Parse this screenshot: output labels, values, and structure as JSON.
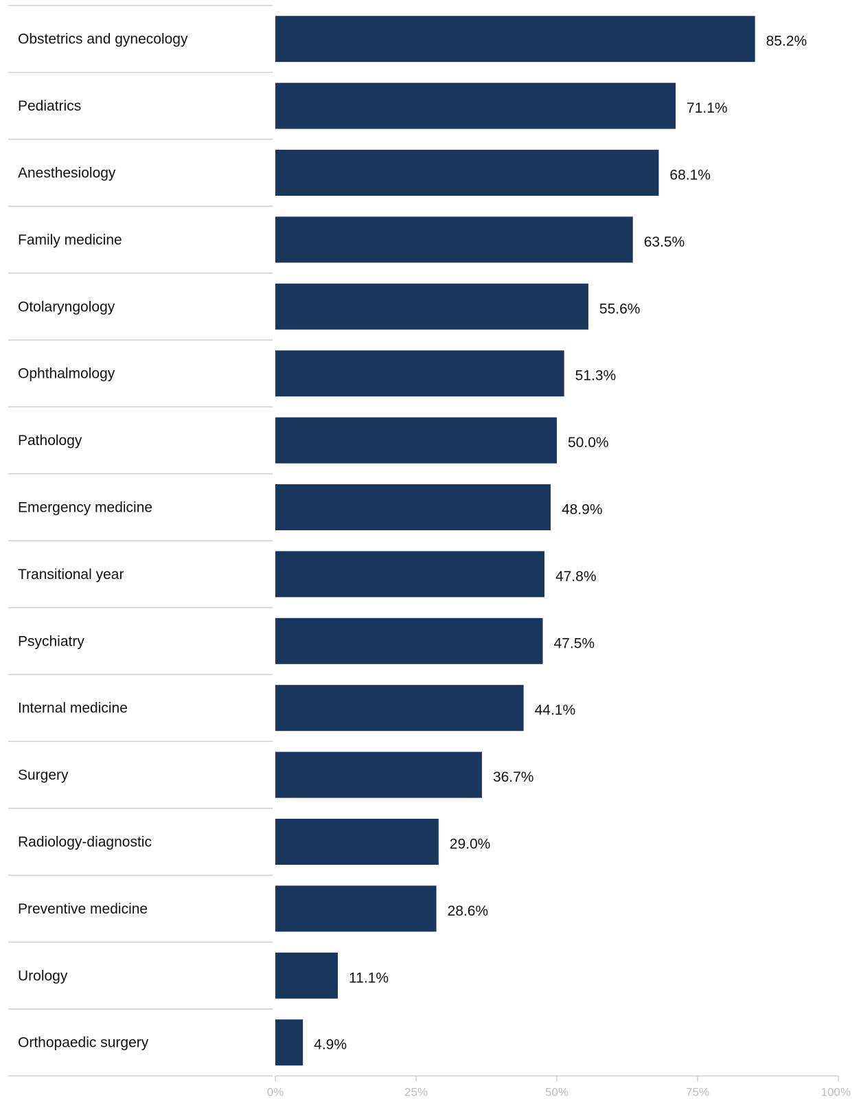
{
  "chart_data": {
    "type": "bar",
    "orientation": "horizontal",
    "categories": [
      "Obstetrics and gynecology",
      "Pediatrics",
      "Anesthesiology",
      "Family medicine",
      "Otolaryngology",
      "Ophthalmology",
      "Pathology",
      "Emergency medicine",
      "Transitional year",
      "Psychiatry",
      "Internal medicine",
      "Surgery",
      "Radiology-diagnostic",
      "Preventive medicine",
      "Urology",
      "Orthopaedic surgery"
    ],
    "values": [
      85.2,
      71.1,
      68.1,
      63.5,
      55.6,
      51.3,
      50.0,
      48.9,
      47.8,
      47.5,
      44.1,
      36.7,
      29.0,
      28.6,
      11.1,
      4.9
    ],
    "value_labels": [
      "85.2%",
      "71.1%",
      "68.1%",
      "63.5%",
      "55.6%",
      "51.3%",
      "50.0%",
      "48.9%",
      "47.8%",
      "47.5%",
      "44.1%",
      "36.7%",
      "29.0%",
      "28.6%",
      "11.1%",
      "4.9%"
    ],
    "x_ticks": [
      0,
      25,
      50,
      75,
      100
    ],
    "x_tick_labels": [
      "0%",
      "25%",
      "50%",
      "75%",
      "100%"
    ],
    "xlim": [
      0,
      100
    ],
    "title": "",
    "xlabel": "",
    "ylabel": "",
    "grid": false,
    "legend": "none",
    "bar_color": "#1b365d"
  }
}
